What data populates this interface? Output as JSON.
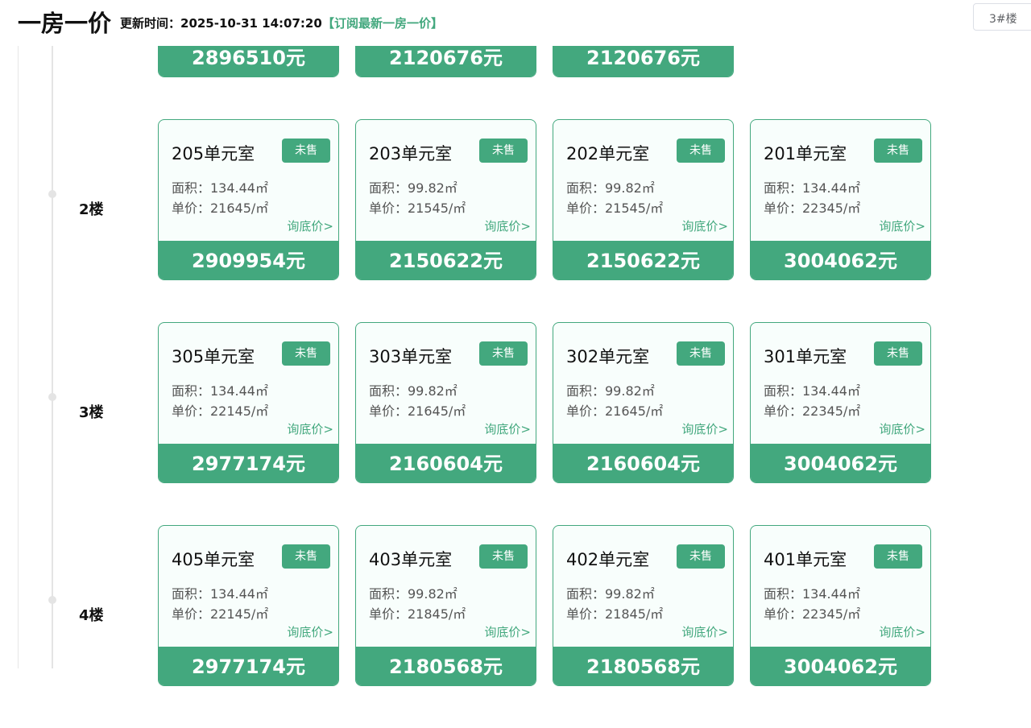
{
  "header": {
    "title": "一房一价",
    "update_label": "更新时间：2025-10-31 14:07:20",
    "subscribe_link": "【订阅最新一房一价】",
    "building_select": "3#楼"
  },
  "colors": {
    "accent": "#43a87e"
  },
  "floors": [
    {
      "label": "",
      "units": [
        {
          "price": "2896510元"
        },
        {
          "price": "2120676元"
        },
        {
          "price": "2120676元"
        }
      ]
    },
    {
      "label": "2楼",
      "units": [
        {
          "room": "205单元室",
          "status": "未售",
          "area": "面积：134.44㎡",
          "unit_price": "单价：21645/㎡",
          "ask": "询底价>",
          "price": "2909954元"
        },
        {
          "room": "203单元室",
          "status": "未售",
          "area": "面积：99.82㎡",
          "unit_price": "单价：21545/㎡",
          "ask": "询底价>",
          "price": "2150622元"
        },
        {
          "room": "202单元室",
          "status": "未售",
          "area": "面积：99.82㎡",
          "unit_price": "单价：21545/㎡",
          "ask": "询底价>",
          "price": "2150622元"
        },
        {
          "room": "201单元室",
          "status": "未售",
          "area": "面积：134.44㎡",
          "unit_price": "单价：22345/㎡",
          "ask": "询底价>",
          "price": "3004062元"
        }
      ]
    },
    {
      "label": "3楼",
      "units": [
        {
          "room": "305单元室",
          "status": "未售",
          "area": "面积：134.44㎡",
          "unit_price": "单价：22145/㎡",
          "ask": "询底价>",
          "price": "2977174元"
        },
        {
          "room": "303单元室",
          "status": "未售",
          "area": "面积：99.82㎡",
          "unit_price": "单价：21645/㎡",
          "ask": "询底价>",
          "price": "2160604元"
        },
        {
          "room": "302单元室",
          "status": "未售",
          "area": "面积：99.82㎡",
          "unit_price": "单价：21645/㎡",
          "ask": "询底价>",
          "price": "2160604元"
        },
        {
          "room": "301单元室",
          "status": "未售",
          "area": "面积：134.44㎡",
          "unit_price": "单价：22345/㎡",
          "ask": "询底价>",
          "price": "3004062元"
        }
      ]
    },
    {
      "label": "4楼",
      "units": [
        {
          "room": "405单元室",
          "status": "未售",
          "area": "面积：134.44㎡",
          "unit_price": "单价：22145/㎡",
          "ask": "询底价>",
          "price": "2977174元"
        },
        {
          "room": "403单元室",
          "status": "未售",
          "area": "面积：99.82㎡",
          "unit_price": "单价：21845/㎡",
          "ask": "询底价>",
          "price": "2180568元"
        },
        {
          "room": "402单元室",
          "status": "未售",
          "area": "面积：99.82㎡",
          "unit_price": "单价：21845/㎡",
          "ask": "询底价>",
          "price": "2180568元"
        },
        {
          "room": "401单元室",
          "status": "未售",
          "area": "面积：134.44㎡",
          "unit_price": "单价：22345/㎡",
          "ask": "询底价>",
          "price": "3004062元"
        }
      ]
    }
  ]
}
